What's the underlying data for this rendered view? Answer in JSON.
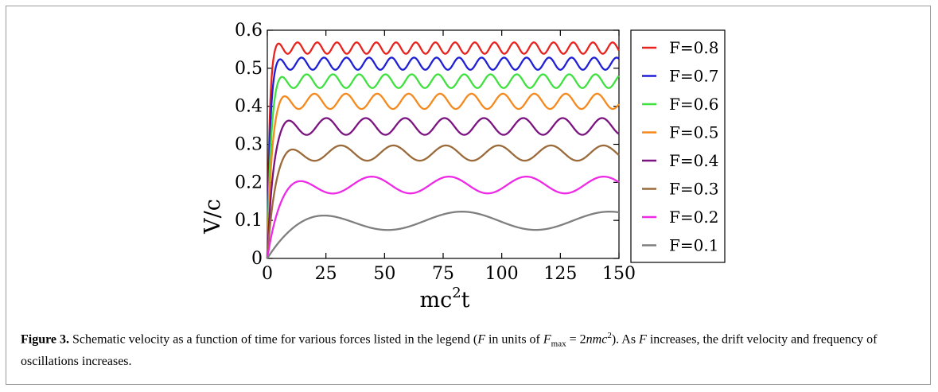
{
  "caption": {
    "label": "Figure 3.",
    "text_1": " Schematic velocity as a function of time for various forces listed in the legend (",
    "F": "F",
    "text_2": " in units of ",
    "Fmax": "F",
    "Fmax_sub": "max",
    "equals": " = 2",
    "n": "n",
    "m": "m",
    "c": "c",
    "sup": "2",
    "text_3": "). As ",
    "F2": "F",
    "text_4": " increases, the drift velocity and frequency of oscillations increases."
  },
  "chart_data": {
    "type": "line",
    "xlabel": "mc",
    "xlabel_sup": "2",
    "xlabel_tail": "t",
    "ylabel": "V/c",
    "xlim": [
      0,
      150
    ],
    "ylim": [
      0,
      0.6
    ],
    "xticks": [
      0,
      25,
      50,
      75,
      100,
      125,
      150
    ],
    "yticks": [
      0,
      0.1,
      0.2,
      0.3,
      0.4,
      0.5,
      0.6
    ],
    "ytick_labels": [
      "0",
      "0.1",
      "0.2",
      "0.3",
      "0.4",
      "0.5",
      "0.6"
    ],
    "legend_position": "right",
    "series": [
      {
        "name": "F=0.8",
        "color": "#e8231e",
        "drift": 0.553,
        "amplitude": 0.015,
        "period": 8.4,
        "rise_time": 0.9,
        "peak_t": 4.5
      },
      {
        "name": "F=0.7",
        "color": "#1f1fd6",
        "drift": 0.512,
        "amplitude": 0.016,
        "period": 9.6,
        "rise_time": 1.1,
        "peak_t": 5.0
      },
      {
        "name": "F=0.6",
        "color": "#3fe03f",
        "drift": 0.466,
        "amplitude": 0.018,
        "period": 11.2,
        "rise_time": 1.4,
        "peak_t": 5.6
      },
      {
        "name": "F=0.5",
        "color": "#f5891e",
        "drift": 0.413,
        "amplitude": 0.02,
        "period": 13.4,
        "rise_time": 1.7,
        "peak_t": 6.7
      },
      {
        "name": "F=0.4",
        "color": "#7b1380",
        "drift": 0.347,
        "amplitude": 0.022,
        "period": 16.8,
        "rise_time": 2.2,
        "peak_t": 8.4
      },
      {
        "name": "F=0.3",
        "color": "#9b6a3a",
        "drift": 0.277,
        "amplitude": 0.02,
        "period": 22.4,
        "rise_time": 3.0,
        "peak_t": 9.0
      },
      {
        "name": "F=0.2",
        "color": "#ee2ae6",
        "drift": 0.193,
        "amplitude": 0.022,
        "period": 33.0,
        "rise_time": 4.5,
        "peak_t": 11.5
      },
      {
        "name": "F=0.1",
        "color": "#7f7f7f",
        "drift": 0.099,
        "amplitude": 0.024,
        "period": 63.0,
        "rise_time": 9.0,
        "peak_t": 20.0
      }
    ]
  }
}
